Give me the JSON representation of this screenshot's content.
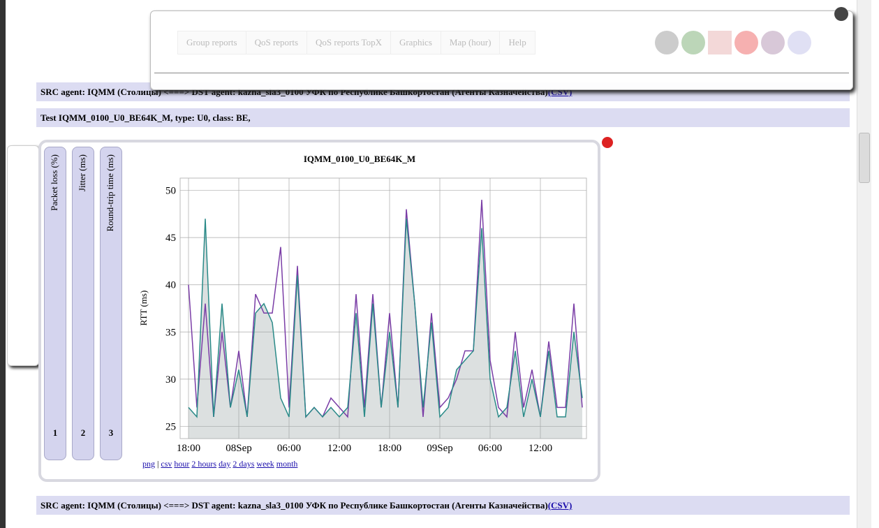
{
  "nav": {
    "tabs": [
      "Group reports",
      "QoS reports",
      "QoS reports TopX",
      "Graphics",
      "Map (hour)",
      "Help"
    ]
  },
  "agent_rows": [
    {
      "text": "SRC agent: IQMM (Столицы) <===> DST agent: kazna_sla3_0100 УФК по Республике Башкортостан (Агенты Казначейства)",
      "link": "(CSV)"
    },
    {
      "text": "SRC agent: IQMM (Столицы) <===> DST agent: kazna_sla3_0100 УФК по Республике Башкортостан (Агенты Казначейства)",
      "link": "(CSV)"
    }
  ],
  "test_row": "Test IQMM_0100_U0_BE64K_M, type: U0, class: BE,",
  "side_tabs": [
    {
      "label": "Packet loss (%)",
      "number": "1"
    },
    {
      "label": "Jitter (ms)",
      "number": "2"
    },
    {
      "label": "Round-trip time (ms)",
      "number": "3"
    }
  ],
  "links": {
    "formats": [
      "png",
      "csv"
    ],
    "separator": "|",
    "ranges": [
      "hour",
      "2 hours",
      "day",
      "2 days",
      "week",
      "month"
    ]
  },
  "chart_data": {
    "type": "line",
    "title": "IQMM_0100_U0_BE64K_M",
    "y_label": "RTT (ms)",
    "x": [
      0,
      1,
      2,
      3,
      4,
      5,
      6,
      7,
      8,
      9,
      10,
      11,
      12,
      13,
      14,
      15,
      16,
      17,
      18,
      19,
      20,
      21,
      22,
      23,
      24,
      25,
      26,
      27,
      28,
      29,
      30,
      31,
      32,
      33,
      34,
      35,
      36,
      37,
      38,
      39,
      40,
      41,
      42,
      43,
      44,
      45,
      46,
      47
    ],
    "xlim": [
      -1,
      47.5
    ],
    "xticks": [
      {
        "value": 0,
        "label": "18:00"
      },
      {
        "value": 6,
        "label": "08Sep"
      },
      {
        "value": 12,
        "label": "06:00"
      },
      {
        "value": 18,
        "label": "12:00"
      },
      {
        "value": 24,
        "label": "18:00"
      },
      {
        "value": 30,
        "label": "09Sep"
      },
      {
        "value": 36,
        "label": "06:00"
      },
      {
        "value": 42,
        "label": "12:00"
      }
    ],
    "ylim": [
      23.7,
      51.3
    ],
    "yticks": [
      25,
      30,
      35,
      40,
      45,
      50
    ],
    "grid": true,
    "area_color": "#9aa5a5",
    "series": [
      {
        "color": "#7a3da6",
        "values": [
          40,
          27,
          38,
          26,
          35,
          27,
          33,
          26,
          39,
          37,
          37,
          44,
          27,
          42,
          26,
          27,
          26,
          28,
          27,
          26,
          39,
          27,
          39,
          27,
          37,
          27,
          48,
          38,
          26,
          37,
          27,
          28,
          30,
          33,
          33,
          49,
          32,
          27,
          26,
          35,
          27,
          31,
          26,
          34,
          27,
          27,
          38,
          27
        ]
      },
      {
        "color": "#2a8a88",
        "values": [
          27,
          26,
          47,
          26,
          38,
          27,
          31,
          26,
          37,
          38,
          36,
          28,
          26,
          41,
          26,
          27,
          26,
          27,
          26,
          27,
          37,
          26,
          38,
          27,
          35,
          27,
          47,
          38,
          27,
          36,
          26,
          27,
          31,
          32,
          33,
          46,
          30,
          26,
          27,
          33,
          26,
          30,
          26,
          33,
          26,
          26,
          35,
          28
        ]
      }
    ]
  }
}
